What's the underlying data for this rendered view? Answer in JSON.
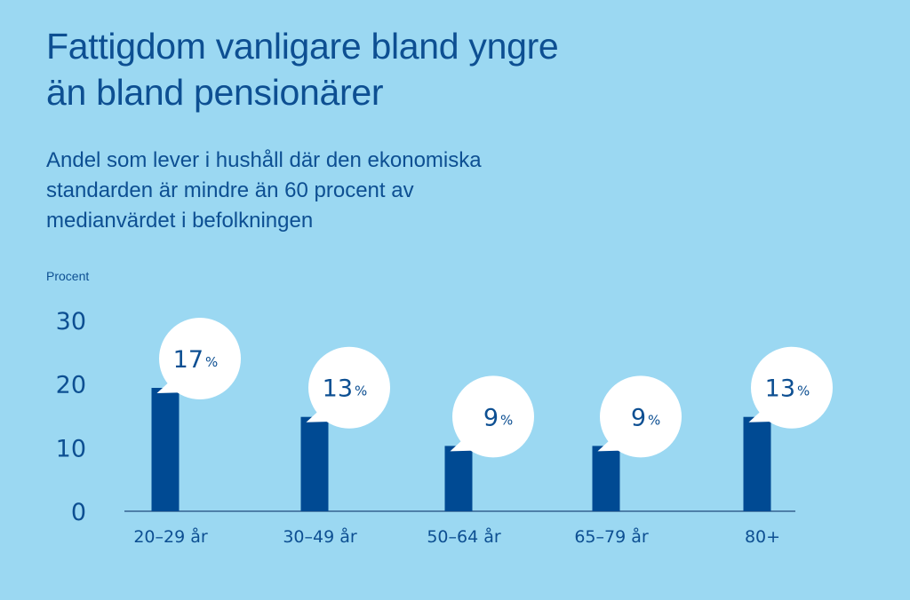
{
  "chart_data": {
    "type": "bar",
    "title": "Fattigdom vanligare bland yngre än bland pensionärer",
    "title_lines": [
      "Fattigdom vanligare bland yngre",
      "än bland pensionärer"
    ],
    "subtitle": "Andel som lever i hushåll där den ekonomiska standarden är mindre än 60 procent av medianvärdet i befolkningen",
    "subtitle_lines": [
      "Andel som lever i hushåll där den ekonomiska",
      "standarden är mindre än 60 procent av",
      "medianvärdet i befolkningen"
    ],
    "ylabel": "Procent",
    "xlabel": "",
    "ylim": [
      0,
      30
    ],
    "yticks": [
      "0",
      "10",
      "20",
      "30"
    ],
    "categories": [
      "20–29 år",
      "30–49 år",
      "50–64 år",
      "65–79 år",
      "80+"
    ],
    "values": [
      17,
      13,
      9,
      9,
      13
    ],
    "value_labels": [
      "17",
      "13",
      "9",
      "9",
      "13"
    ],
    "value_suffix": "%",
    "grid": false,
    "colors": {
      "bar": "#004a93",
      "text": "#0d4f92",
      "background": "#9bd8f2",
      "bubble": "#ffffff",
      "axis": "#4f7fa8"
    }
  }
}
